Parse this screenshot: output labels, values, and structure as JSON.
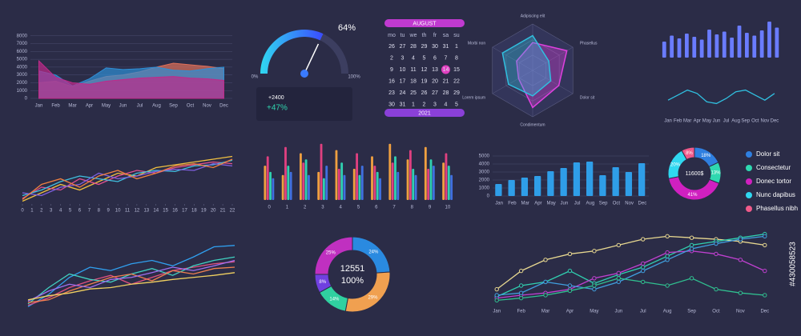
{
  "chart_data": [
    {
      "type": "area",
      "categories": [
        "Jan",
        "Feb",
        "Mar",
        "Apr",
        "May",
        "Jun",
        "Jul",
        "Aug",
        "Sep",
        "Oct",
        "Nov",
        "Dec"
      ],
      "ylim": [
        0,
        9000
      ],
      "yticks": [
        0,
        1000,
        2000,
        3000,
        4000,
        5000,
        6000,
        7000,
        8000
      ],
      "grid": true,
      "series": [
        {
          "color": "#e0705a",
          "values": [
            2000,
            2200,
            1500,
            2200,
            2800,
            3000,
            3400,
            4000,
            4500,
            4300,
            4100,
            3800
          ]
        },
        {
          "color": "#2f8fd6",
          "values": [
            3500,
            3000,
            1600,
            2500,
            3900,
            3700,
            3800,
            4000,
            3600,
            3500,
            3800,
            4000
          ]
        },
        {
          "color": "#c02a8a",
          "values": [
            4800,
            2700,
            2000,
            1800,
            2200,
            2400,
            2600,
            2700,
            2800,
            2600,
            2500,
            2300
          ]
        }
      ]
    },
    {
      "type": "gauge",
      "value": 64,
      "value_label": "64%",
      "ylim": [
        0,
        100
      ],
      "yticks": [
        {
          "value": 0,
          "label": "0%"
        },
        {
          "value": 100,
          "label": "100%"
        }
      ],
      "annotations": [
        "+2400",
        "+47%"
      ],
      "color": "#3a7bff"
    },
    {
      "type": "radar",
      "categories": [
        "Adipiscing elit",
        "Phasellus",
        "Dolor sit",
        "Condimentum",
        "Lorem ipsum",
        "Morbi non"
      ],
      "ylim": [
        0,
        100
      ],
      "series": [
        {
          "color": "#e040e0",
          "values": [
            60,
            85,
            65,
            80,
            35,
            40
          ]
        },
        {
          "color": "#30c0e0",
          "values": [
            75,
            40,
            45,
            55,
            60,
            75
          ]
        }
      ]
    },
    {
      "type": "bar",
      "ylim": [
        0,
        100
      ],
      "color": "#6a7cff",
      "values": [
        40,
        55,
        48,
        60,
        52,
        45,
        70,
        58,
        65,
        50,
        80,
        62,
        55,
        68,
        90,
        75
      ]
    },
    {
      "type": "line",
      "categories": [
        "Jan",
        "Feb",
        "Mar",
        "Apr",
        "May",
        "Jun",
        "Jul",
        "Aug",
        "Sep",
        "Oct",
        "Nov",
        "Dec"
      ],
      "ylim": [
        0,
        100
      ],
      "series": [
        {
          "color": "#30c0e0",
          "values": [
            40,
            55,
            70,
            60,
            35,
            30,
            45,
            65,
            70,
            55,
            40,
            60
          ]
        }
      ]
    },
    {
      "type": "line",
      "x": [
        0,
        2,
        4,
        6,
        8,
        10,
        12,
        14,
        16,
        18,
        20,
        22
      ],
      "xlim": [
        0,
        22
      ],
      "xticks": [
        0,
        1,
        2,
        3,
        4,
        5,
        6,
        7,
        8,
        9,
        10,
        11,
        12,
        13,
        14,
        15,
        16,
        17,
        18,
        19,
        20,
        21,
        22
      ],
      "ylim": [
        0,
        100
      ],
      "grid": true,
      "series": [
        {
          "color": "#f0c040",
          "values": [
            5,
            20,
            35,
            25,
            40,
            55,
            50,
            65,
            70,
            75,
            80,
            85
          ]
        },
        {
          "color": "#e05090",
          "values": [
            10,
            30,
            25,
            45,
            35,
            50,
            60,
            55,
            65,
            70,
            75,
            72
          ]
        },
        {
          "color": "#40c0e0",
          "values": [
            15,
            25,
            40,
            50,
            45,
            40,
            55,
            60,
            58,
            68,
            70,
            78
          ]
        },
        {
          "color": "#8060e0",
          "values": [
            20,
            15,
            30,
            35,
            55,
            45,
            50,
            58,
            62,
            60,
            72,
            68
          ]
        },
        {
          "color": "#f08040",
          "values": [
            8,
            35,
            45,
            30,
            50,
            60,
            45,
            55,
            68,
            72,
            65,
            80
          ]
        }
      ]
    },
    {
      "type": "bar",
      "categories": [
        "0",
        "1",
        "2",
        "3",
        "4",
        "5",
        "6",
        "7",
        "8",
        "9",
        "10"
      ],
      "ylim": [
        0,
        100
      ],
      "series": [
        {
          "color": "#f0a040",
          "values": [
            55,
            40,
            75,
            45,
            80,
            50,
            70,
            90,
            65,
            85,
            60
          ]
        },
        {
          "color": "#e04080",
          "values": [
            70,
            85,
            60,
            90,
            50,
            75,
            55,
            60,
            80,
            50,
            75
          ]
        },
        {
          "color": "#30d0b0",
          "values": [
            45,
            55,
            65,
            35,
            60,
            40,
            45,
            70,
            50,
            65,
            55
          ]
        },
        {
          "color": "#4070e0",
          "values": [
            35,
            45,
            40,
            55,
            40,
            55,
            35,
            45,
            40,
            55,
            40
          ]
        }
      ]
    },
    {
      "type": "bar",
      "categories": [
        "Jan",
        "Feb",
        "Mar",
        "Apr",
        "May",
        "Jun",
        "Jul",
        "Aug",
        "Sep",
        "Oct",
        "Nov",
        "Dec"
      ],
      "ylim": [
        0,
        5000
      ],
      "yticks": [
        0,
        1000,
        2000,
        3000,
        4000,
        5000
      ],
      "grid": true,
      "color": "#2f9ee8",
      "values": [
        1500,
        2000,
        2300,
        2500,
        3100,
        3500,
        4200,
        4300,
        2600,
        3600,
        3000,
        4100
      ]
    },
    {
      "type": "donut",
      "categories": [
        "Dolor sit",
        "Consectetur",
        "Donec tortor",
        "Nunc dapibus",
        "Phasellus nibh"
      ],
      "legend": "right",
      "center_label": "11600$",
      "colors": [
        "#2f7fe0",
        "#2fd8b0",
        "#d020c0",
        "#30d8f0",
        "#f05a8a"
      ],
      "values": [
        18,
        13,
        41,
        20,
        8
      ],
      "value_labels": [
        "18%",
        "13%",
        "41%",
        "20%",
        "8%"
      ]
    },
    {
      "type": "line",
      "ylim": [
        0,
        100
      ],
      "series": [
        {
          "color": "#30a0f0",
          "values": [
            2,
            20,
            45,
            60,
            55,
            65,
            70,
            62,
            75,
            90,
            92
          ]
        },
        {
          "color": "#e05080",
          "values": [
            4,
            15,
            30,
            40,
            48,
            35,
            45,
            55,
            60,
            65,
            68
          ]
        },
        {
          "color": "#40d0c0",
          "values": [
            6,
            30,
            50,
            42,
            38,
            50,
            58,
            48,
            62,
            70,
            75
          ]
        },
        {
          "color": "#f08050",
          "values": [
            8,
            12,
            25,
            35,
            45,
            50,
            40,
            55,
            50,
            58,
            60
          ]
        },
        {
          "color": "#a070f0",
          "values": [
            10,
            25,
            35,
            30,
            42,
            45,
            52,
            60,
            55,
            62,
            70
          ]
        },
        {
          "color": "#f0d060",
          "values": [
            12,
            18,
            22,
            28,
            30,
            35,
            38,
            42,
            45,
            48,
            52
          ]
        }
      ]
    },
    {
      "type": "donut",
      "center_label": "12551",
      "center_sublabel": "100%",
      "colors": [
        "#2a8ae0",
        "#f0a050",
        "#30d0a0",
        "#7040e0",
        "#c030c0"
      ],
      "values": [
        24,
        29,
        14,
        8,
        25
      ],
      "value_labels": [
        "24%",
        "29%",
        "14%",
        "8%",
        "25%"
      ]
    },
    {
      "type": "line",
      "categories": [
        "Jan",
        "Feb",
        "Mar",
        "Apr",
        "May",
        "Jun",
        "Jul",
        "Aug",
        "Sep",
        "Oct",
        "Nov",
        "Dec"
      ],
      "ylim": [
        0,
        100
      ],
      "grid": true,
      "markers": true,
      "series": [
        {
          "color": "#e8d890",
          "values": [
            20,
            45,
            60,
            68,
            72,
            80,
            88,
            92,
            90,
            88,
            85,
            80
          ]
        },
        {
          "color": "#30d0b0",
          "values": [
            10,
            25,
            30,
            45,
            28,
            40,
            50,
            65,
            80,
            85,
            90,
            95
          ]
        },
        {
          "color": "#c040d0",
          "values": [
            8,
            12,
            15,
            20,
            35,
            42,
            55,
            70,
            72,
            68,
            60,
            45
          ]
        },
        {
          "color": "#40a0e0",
          "values": [
            12,
            15,
            30,
            25,
            20,
            30,
            45,
            60,
            75,
            82,
            88,
            92
          ]
        },
        {
          "color": "#30c090",
          "values": [
            5,
            8,
            12,
            18,
            25,
            35,
            30,
            25,
            35,
            20,
            15,
            12
          ]
        }
      ]
    }
  ],
  "calendar": {
    "month": "AUGUST",
    "year": "2021",
    "weekdays": [
      "mo",
      "tu",
      "we",
      "th",
      "fr",
      "sa",
      "su"
    ],
    "highlighted": 14,
    "days": [
      26,
      27,
      28,
      29,
      30,
      31,
      1,
      2,
      3,
      4,
      5,
      6,
      7,
      8,
      9,
      10,
      11,
      12,
      13,
      14,
      15,
      16,
      17,
      18,
      19,
      20,
      21,
      22,
      23,
      24,
      25,
      26,
      27,
      28,
      29,
      30,
      31,
      1,
      2,
      3,
      4,
      5
    ]
  },
  "stock_id": "#430058523"
}
